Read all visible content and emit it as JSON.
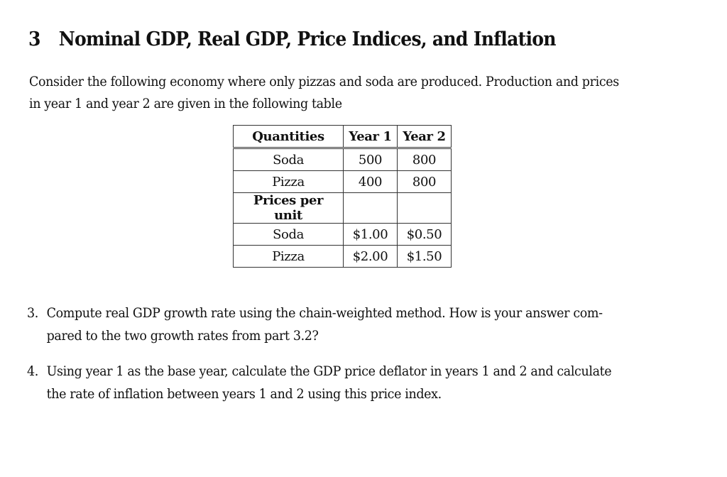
{
  "section": {
    "number": "3",
    "title": "Nominal GDP, Real GDP, Price Indices, and Inflation"
  },
  "intro": {
    "line1": "Consider the following economy where only pizzas and soda are produced. Production and prices",
    "line2": "in year 1 and year 2 are given in the following table"
  },
  "table": {
    "headers": [
      "Quantities",
      "Year 1",
      "Year 2"
    ],
    "rows": [
      {
        "label": "Soda",
        "y1": "500",
        "y2": "800"
      },
      {
        "label": "Pizza",
        "y1": "400",
        "y2": "800"
      },
      {
        "label": "Prices per unit",
        "y1": "",
        "y2": ""
      },
      {
        "label": "Soda",
        "y1": "$1.00",
        "y2": "$0.50"
      },
      {
        "label": "Pizza",
        "y1": "$2.00",
        "y2": "$1.50"
      }
    ]
  },
  "questions": [
    {
      "number": "3.",
      "line1": "Compute real GDP growth rate using the chain-weighted method. How is your answer com-",
      "line2": "pared to the two growth rates from part 3.2?"
    },
    {
      "number": "4.",
      "line1": "Using year 1 as the base year, calculate the GDP price deflator in years 1 and 2 and calculate",
      "line2": "the rate of inflation between years 1 and 2 using this price index."
    }
  ]
}
